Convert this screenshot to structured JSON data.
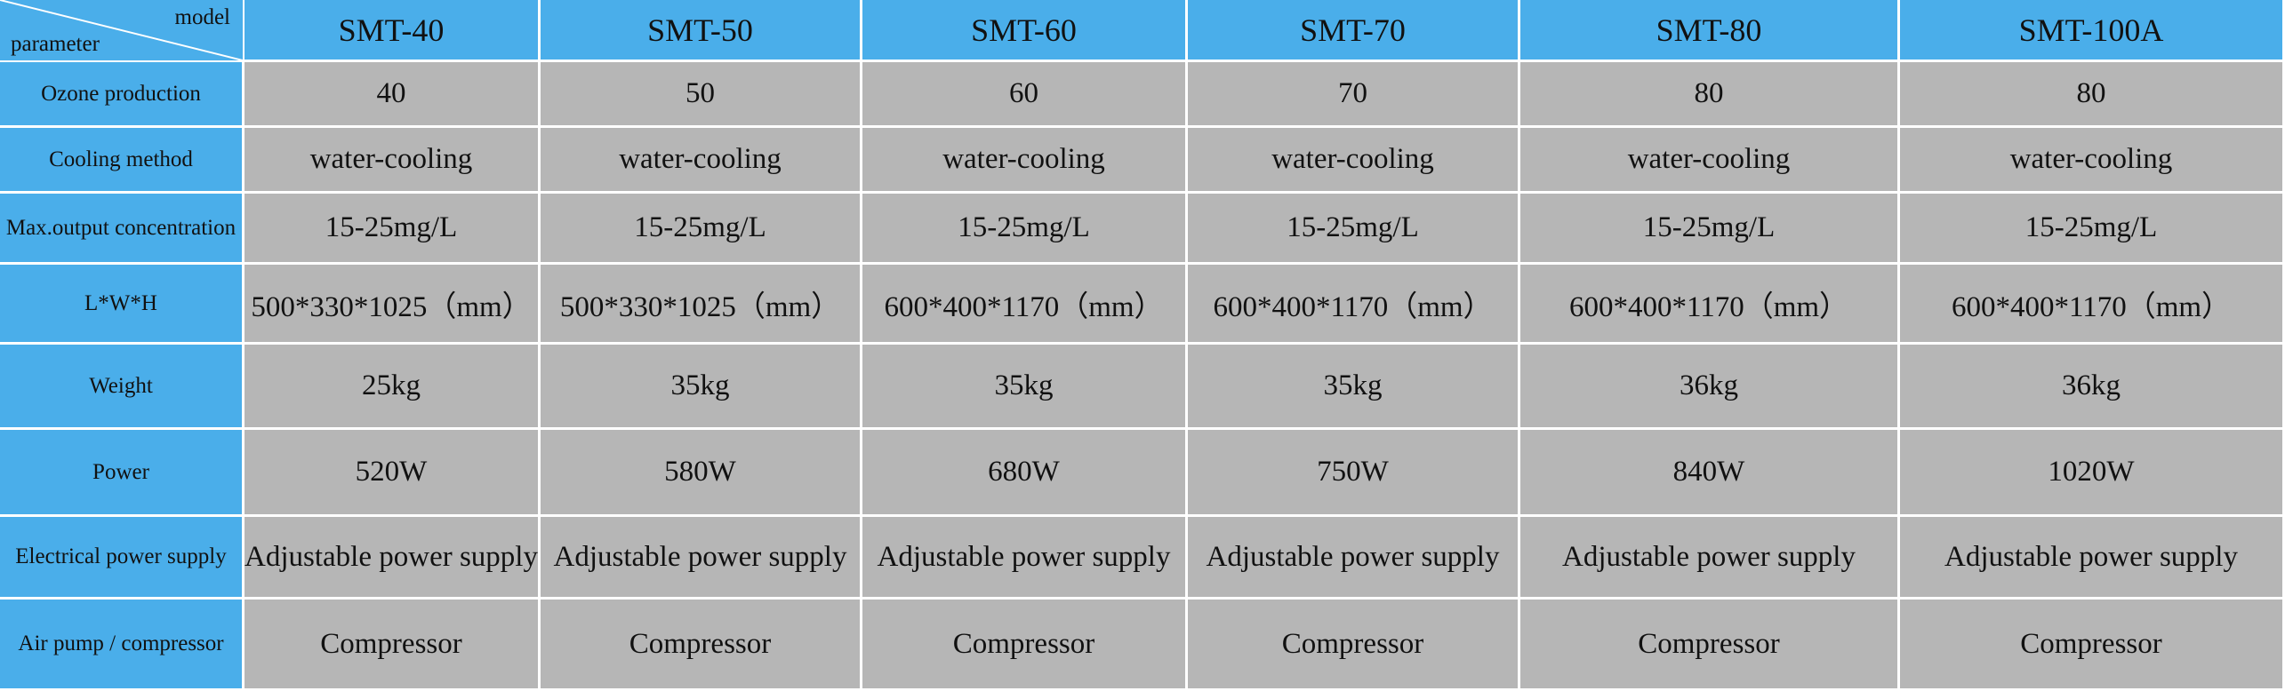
{
  "table": {
    "corner": {
      "top": "model",
      "bottom": "parameter"
    },
    "columns": [
      "SMT-40",
      "SMT-50",
      "SMT-60",
      "SMT-70",
      "SMT-80",
      "SMT-100A"
    ],
    "rows": [
      {
        "label": "Ozone production",
        "cells": [
          "40",
          "50",
          "60",
          "70",
          "80",
          "80"
        ]
      },
      {
        "label": "Cooling method",
        "cells": [
          "water-cooling",
          "water-cooling",
          "water-cooling",
          "water-cooling",
          "water-cooling",
          "water-cooling"
        ]
      },
      {
        "label": "Max.output concentration",
        "cells": [
          "15-25mg/L",
          "15-25mg/L",
          "15-25mg/L",
          "15-25mg/L",
          "15-25mg/L",
          "15-25mg/L"
        ]
      },
      {
        "label": "L*W*H",
        "cells": [
          "500*330*1025（mm）",
          "500*330*1025（mm）",
          "600*400*1170（mm）",
          "600*400*1170（mm）",
          "600*400*1170（mm）",
          "600*400*1170（mm）"
        ]
      },
      {
        "label": "Weight",
        "cells": [
          "25kg",
          "35kg",
          "35kg",
          "35kg",
          "36kg",
          "36kg"
        ]
      },
      {
        "label": "Power",
        "cells": [
          "520W",
          "580W",
          "680W",
          "750W",
          "840W",
          "1020W"
        ]
      },
      {
        "label": "Electrical power supply",
        "cells": [
          "Adjustable power supply",
          "Adjustable power supply",
          "Adjustable power supply",
          "Adjustable power supply",
          "Adjustable power supply",
          "Adjustable power supply"
        ]
      },
      {
        "label": "Air pump / compressor",
        "cells": [
          "Compressor",
          "Compressor",
          "Compressor",
          "Compressor",
          "Compressor",
          "Compressor"
        ]
      }
    ]
  }
}
